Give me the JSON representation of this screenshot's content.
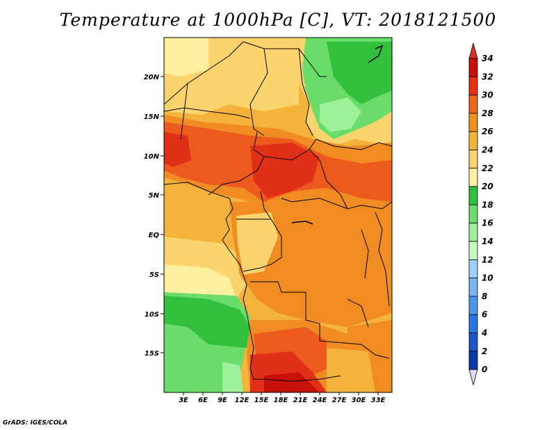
{
  "title": "Temperature at 1000hPa [C], VT: 2018121500",
  "credit": "GrADS: IGES/COLA",
  "lat_labels": [
    "20N",
    "15N",
    "10N",
    "5N",
    "EQ",
    "5S",
    "10S",
    "15S"
  ],
  "lon_labels": [
    "3E",
    "6E",
    "9E",
    "12E",
    "15E",
    "18E",
    "21E",
    "24E",
    "27E",
    "30E",
    "33E"
  ],
  "colorbar": {
    "labels": [
      "34",
      "32",
      "30",
      "28",
      "26",
      "24",
      "22",
      "20",
      "18",
      "16",
      "14",
      "12",
      "10",
      "8",
      "6",
      "4",
      "2",
      "0"
    ],
    "colors": [
      "#c8100a",
      "#e83212",
      "#f0641c",
      "#f0901e",
      "#f4b43c",
      "#fcd46e",
      "#fcf0a0",
      "#32c03c",
      "#6adc6a",
      "#9ef09a",
      "#c8fac4",
      "#9cd0f8",
      "#78b4f0",
      "#4c96e8",
      "#2a76e0",
      "#1858c8",
      "#0a3aa8",
      "#00106e"
    ],
    "top_color": "#e03020",
    "bottom_color": "#dcdcf8"
  },
  "palette": {
    "red": "#e03018",
    "orange_red": "#ec5a1e",
    "orange": "#f08c22",
    "light_orange": "#f4b43c",
    "yellow": "#fcd46e",
    "pale_yellow": "#fcf0a0",
    "green": "#32c03c",
    "light_green": "#6adc6a",
    "pale_green": "#9ef09a"
  }
}
